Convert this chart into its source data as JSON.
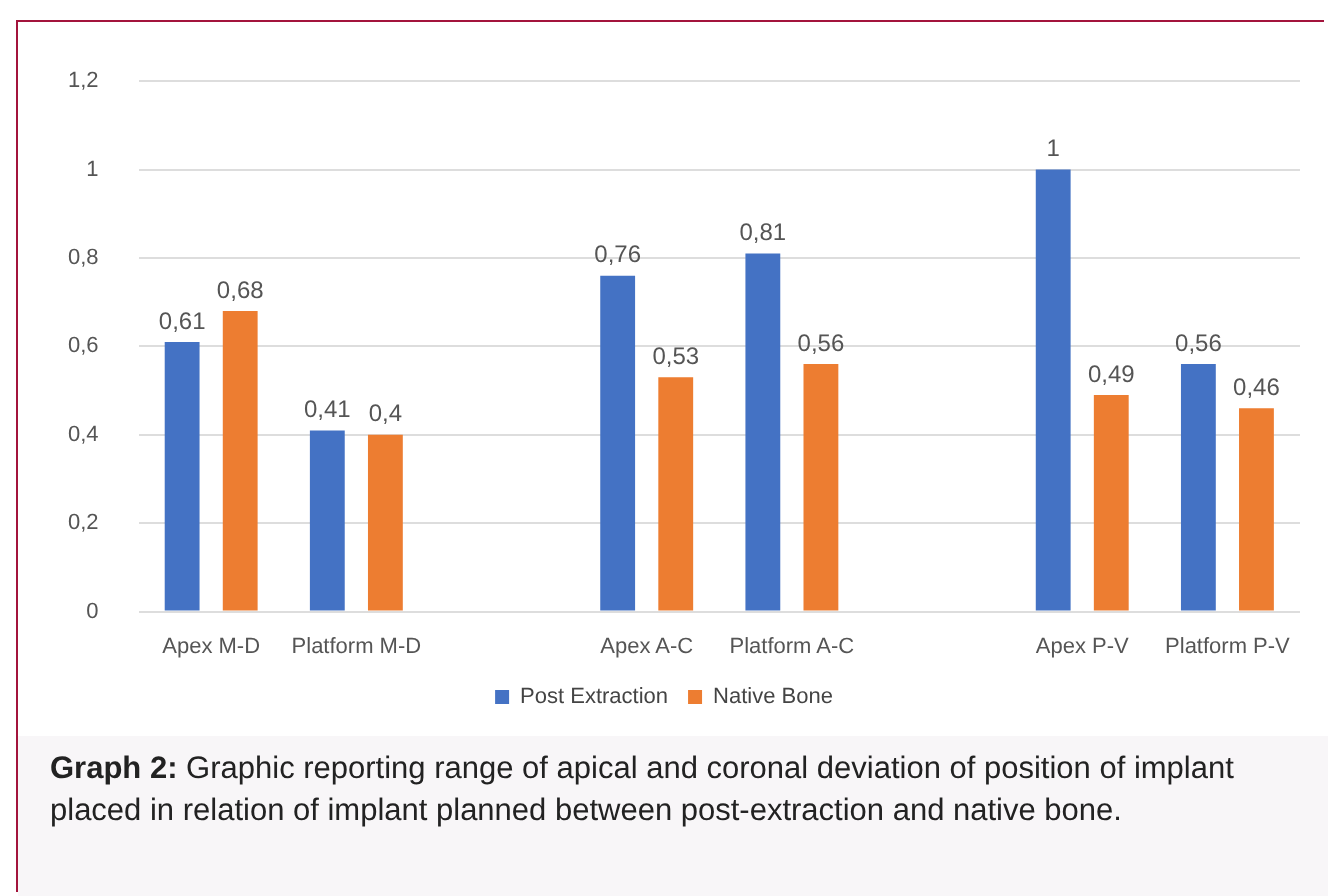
{
  "chart_data": {
    "type": "bar",
    "categories": [
      "Apex M-D",
      "Platform M-D",
      null,
      "Apex A-C",
      "Platform A-C",
      null,
      "Apex P-V",
      "Platform P-V"
    ],
    "series": [
      {
        "name": "Post Extraction",
        "color": "#4472c4",
        "values": [
          0.61,
          0.41,
          null,
          0.76,
          0.81,
          null,
          1,
          0.56
        ],
        "value_labels": [
          "0,61",
          "0,41",
          null,
          "0,76",
          "0,81",
          null,
          "1",
          "0,56"
        ]
      },
      {
        "name": "Native Bone",
        "color": "#ed7d31",
        "values": [
          0.68,
          0.4,
          null,
          0.53,
          0.56,
          null,
          0.49,
          0.46
        ],
        "value_labels": [
          "0,68",
          "0,4",
          null,
          "0,53",
          "0,56",
          null,
          "0,49",
          "0,46"
        ]
      }
    ],
    "ylim": [
      0,
      1.2
    ],
    "yticks": [
      0,
      {
        "value": 0.2,
        "label": "0,2"
      },
      {
        "value": 0.4,
        "label": "0,4"
      },
      {
        "value": 0.6,
        "label": "0,6"
      },
      {
        "value": 0.8,
        "label": "0,8"
      },
      1,
      {
        "value": 1.2,
        "label": "1,2"
      }
    ],
    "grid": "y",
    "legend": "bottom",
    "annotations": [
      "Graph 2:",
      "Graphic reporting range of apical and coronal deviation of position of implant placed in relation of implant planned between post-extraction and native bone."
    ]
  }
}
